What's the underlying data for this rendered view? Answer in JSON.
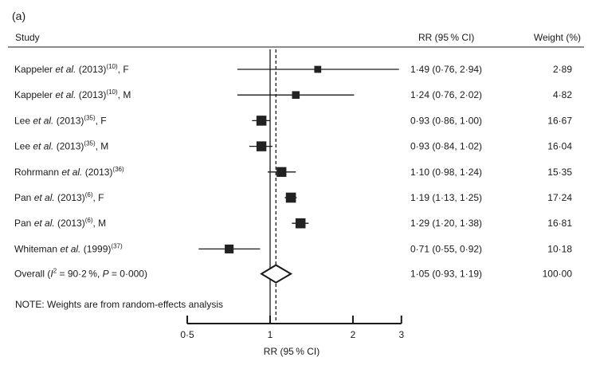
{
  "panel_label": "(a)",
  "headers": {
    "study": "Study",
    "rr": "RR (95 % CI)",
    "weight": "Weight (%)"
  },
  "note": "NOTE: Weights are from random-effects analysis",
  "colors": {
    "ink": "#1a1a1a",
    "box": "#222222",
    "background": "#ffffff"
  },
  "chart_data": {
    "type": "forest",
    "xlabel": "RR (95 % CI)",
    "x_scale": "log",
    "xlim": [
      0.5,
      3
    ],
    "xticks": [
      0.5,
      1,
      2,
      3
    ],
    "xtick_labels": [
      "0·5",
      "1",
      "2",
      "3"
    ],
    "null_line": 1,
    "pooled_line": 1.05,
    "studies": [
      {
        "label_parts": [
          {
            "t": "Kappeler "
          },
          {
            "t": "et al.",
            "i": true
          },
          {
            "t": " (2013)"
          },
          {
            "t": "(10)",
            "sup": true
          },
          {
            "t": ", F"
          }
        ],
        "rr": 1.49,
        "lo": 0.76,
        "hi": 2.94,
        "weight": 2.89,
        "rr_text": "1·49 (0·76, 2·94)",
        "weight_text": "2·89"
      },
      {
        "label_parts": [
          {
            "t": "Kappeler "
          },
          {
            "t": "et al.",
            "i": true
          },
          {
            "t": " (2013)"
          },
          {
            "t": "(10)",
            "sup": true
          },
          {
            "t": ", M"
          }
        ],
        "rr": 1.24,
        "lo": 0.76,
        "hi": 2.02,
        "weight": 4.82,
        "rr_text": "1·24 (0·76, 2·02)",
        "weight_text": "4·82"
      },
      {
        "label_parts": [
          {
            "t": "Lee "
          },
          {
            "t": "et al.",
            "i": true
          },
          {
            "t": " (2013)"
          },
          {
            "t": "(35)",
            "sup": true
          },
          {
            "t": ", F"
          }
        ],
        "rr": 0.93,
        "lo": 0.86,
        "hi": 1.0,
        "weight": 16.67,
        "rr_text": "0·93 (0·86, 1·00)",
        "weight_text": "16·67"
      },
      {
        "label_parts": [
          {
            "t": "Lee "
          },
          {
            "t": "et al.",
            "i": true
          },
          {
            "t": " (2013)"
          },
          {
            "t": "(35)",
            "sup": true
          },
          {
            "t": ", M"
          }
        ],
        "rr": 0.93,
        "lo": 0.84,
        "hi": 1.02,
        "weight": 16.04,
        "rr_text": "0·93 (0·84, 1·02)",
        "weight_text": "16·04"
      },
      {
        "label_parts": [
          {
            "t": "Rohrmann "
          },
          {
            "t": "et al.",
            "i": true
          },
          {
            "t": " (2013)"
          },
          {
            "t": "(36)",
            "sup": true
          }
        ],
        "rr": 1.1,
        "lo": 0.98,
        "hi": 1.24,
        "weight": 15.35,
        "rr_text": "1·10 (0·98, 1·24)",
        "weight_text": "15·35"
      },
      {
        "label_parts": [
          {
            "t": "Pan "
          },
          {
            "t": "et al.",
            "i": true
          },
          {
            "t": " (2013)"
          },
          {
            "t": "(6)",
            "sup": true
          },
          {
            "t": ", F"
          }
        ],
        "rr": 1.19,
        "lo": 1.13,
        "hi": 1.25,
        "weight": 17.24,
        "rr_text": "1·19 (1·13, 1·25)",
        "weight_text": "17·24"
      },
      {
        "label_parts": [
          {
            "t": "Pan "
          },
          {
            "t": "et al.",
            "i": true
          },
          {
            "t": " (2013)"
          },
          {
            "t": "(6)",
            "sup": true
          },
          {
            "t": ", M"
          }
        ],
        "rr": 1.29,
        "lo": 1.2,
        "hi": 1.38,
        "weight": 16.81,
        "rr_text": "1·29 (1·20, 1·38)",
        "weight_text": "16·81"
      },
      {
        "label_parts": [
          {
            "t": "Whiteman "
          },
          {
            "t": "et al.",
            "i": true
          },
          {
            "t": " (1999)"
          },
          {
            "t": "(37)",
            "sup": true
          }
        ],
        "rr": 0.71,
        "lo": 0.55,
        "hi": 0.92,
        "weight": 10.18,
        "rr_text": "0·71 (0·55, 0·92)",
        "weight_text": "10·18"
      }
    ],
    "overall": {
      "label_parts": [
        {
          "t": "Overall ("
        },
        {
          "t": "I",
          "i": true
        },
        {
          "t": "2",
          "sup": true
        },
        {
          "t": " = 90·2 %, "
        },
        {
          "t": "P",
          "i": true
        },
        {
          "t": " = 0·000)"
        }
      ],
      "rr": 1.05,
      "lo": 0.93,
      "hi": 1.19,
      "weight": 100.0,
      "rr_text": "1·05 (0·93, 1·19)",
      "weight_text": "100·00"
    }
  }
}
